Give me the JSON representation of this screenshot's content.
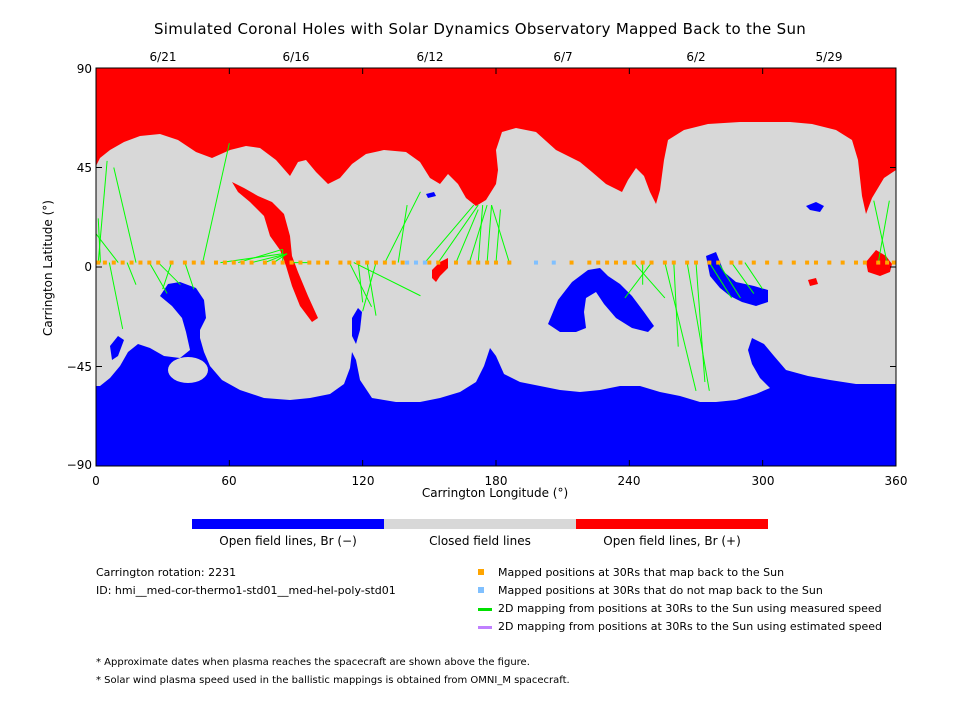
{
  "chart_data": {
    "type": "heatmap",
    "title": "Simulated Coronal Holes with Solar Dynamics Observatory Mapped Back to the Sun",
    "xlabel": "Carrington Longitude (°)",
    "ylabel": "Carrington Latitude (°)",
    "xlim": [
      0,
      360
    ],
    "ylim": [
      -90,
      90
    ],
    "x_ticks": [
      "0",
      "60",
      "120",
      "180",
      "240",
      "300",
      "360"
    ],
    "y_ticks": [
      "90",
      "45",
      "0",
      "−45",
      "−90"
    ],
    "top_dates": [
      {
        "label": "6/21",
        "lon": 30
      },
      {
        "label": "6/16",
        "lon": 90
      },
      {
        "label": "6/12",
        "lon": 150
      },
      {
        "label": "6/7",
        "lon": 210
      },
      {
        "label": "6/2",
        "lon": 270
      },
      {
        "label": "5/29",
        "lon": 330
      }
    ],
    "colors": {
      "open_negative": "#0000ff",
      "closed": "#d8d8d8",
      "open_positive": "#ff0000",
      "mapped_back": "#ffa500",
      "not_mapped": "#80c0ff",
      "measured_speed": "#00ff00",
      "estimated_speed": "#c080ff"
    },
    "colorbar": [
      {
        "label": "Open field lines, Br (−)",
        "color": "#0000ff"
      },
      {
        "label": "Closed field lines",
        "color": "#d8d8d8"
      },
      {
        "label": "Open field lines, Br (+)",
        "color": "#ff0000"
      }
    ],
    "mapped_points_lat": 2,
    "mapped_points_lon": [
      1,
      4,
      8,
      12,
      16,
      20,
      24,
      28,
      34,
      40,
      44,
      48,
      54,
      58,
      62,
      66,
      70,
      76,
      80,
      84,
      88,
      92,
      96,
      100,
      104,
      110,
      114,
      118,
      122,
      126,
      130,
      134,
      138,
      150,
      154,
      162,
      168,
      172,
      176,
      180,
      186,
      214,
      222,
      226,
      230,
      234,
      238,
      242,
      246,
      250,
      256,
      260,
      266,
      270,
      276,
      280,
      286,
      290,
      296,
      302,
      308,
      314,
      320,
      324,
      330,
      336,
      342,
      346,
      352,
      356,
      359
    ],
    "not_mapped_points_lon": [
      140,
      144,
      148,
      198,
      206
    ],
    "green_lines": [
      [
        1,
        2,
        5,
        48
      ],
      [
        2,
        2,
        1,
        22
      ],
      [
        6,
        2,
        12,
        -28
      ],
      [
        10,
        2,
        0,
        15
      ],
      [
        14,
        2,
        18,
        -8
      ],
      [
        18,
        2,
        8,
        45
      ],
      [
        24,
        2,
        32,
        -12
      ],
      [
        28,
        2,
        38,
        -8
      ],
      [
        34,
        2,
        30,
        -10
      ],
      [
        40,
        2,
        44,
        -10
      ],
      [
        48,
        2,
        60,
        56
      ],
      [
        56,
        2,
        84,
        6
      ],
      [
        64,
        2,
        84,
        8
      ],
      [
        70,
        2,
        86,
        6
      ],
      [
        76,
        2,
        86,
        6
      ],
      [
        80,
        2,
        86,
        6
      ],
      [
        84,
        2,
        84,
        8
      ],
      [
        88,
        2,
        96,
        2
      ],
      [
        114,
        2,
        124,
        -18
      ],
      [
        116,
        2,
        146,
        -13
      ],
      [
        118,
        2,
        120,
        -16
      ],
      [
        122,
        2,
        126,
        -22
      ],
      [
        126,
        2,
        120,
        -20
      ],
      [
        130,
        2,
        146,
        34
      ],
      [
        136,
        2,
        140,
        28
      ],
      [
        148,
        2,
        170,
        28
      ],
      [
        154,
        2,
        172,
        28
      ],
      [
        162,
        2,
        172,
        26
      ],
      [
        168,
        2,
        176,
        28
      ],
      [
        172,
        2,
        174,
        28
      ],
      [
        176,
        2,
        178,
        28
      ],
      [
        180,
        2,
        182,
        26
      ],
      [
        186,
        2,
        178,
        28
      ],
      [
        242,
        2,
        256,
        -14
      ],
      [
        246,
        2,
        246,
        -8
      ],
      [
        250,
        2,
        238,
        -14
      ],
      [
        256,
        2,
        270,
        -56
      ],
      [
        260,
        2,
        262,
        -36
      ],
      [
        266,
        2,
        276,
        -56
      ],
      [
        270,
        2,
        274,
        -52
      ],
      [
        276,
        2,
        286,
        -14
      ],
      [
        280,
        2,
        290,
        -14
      ],
      [
        286,
        2,
        296,
        -12
      ],
      [
        292,
        2,
        300,
        -10
      ],
      [
        352,
        2,
        357,
        30
      ],
      [
        356,
        2,
        350,
        30
      ]
    ]
  },
  "info": {
    "rotation": "Carrington rotation: 2231",
    "id": "ID: hmi__med-cor-thermo1-std01__med-hel-poly-std01"
  },
  "legend": [
    {
      "kind": "square",
      "color": "#ffa500",
      "label": "Mapped positions at 30Rs that map back to the Sun"
    },
    {
      "kind": "square",
      "color": "#80c0ff",
      "label": "Mapped positions at 30Rs that do not map back to the Sun"
    },
    {
      "kind": "line",
      "color": "#00e000",
      "label": "2D mapping from positions at 30Rs to the Sun using measured speed"
    },
    {
      "kind": "line",
      "color": "#c080ff",
      "label": "2D mapping from positions at 30Rs to the Sun using estimated speed"
    }
  ],
  "notes": [
    "* Approximate dates when plasma reaches the spacecraft are shown above the figure.",
    "* Solar wind plasma speed used in the ballistic mappings is obtained from OMNI_M spacecraft."
  ]
}
